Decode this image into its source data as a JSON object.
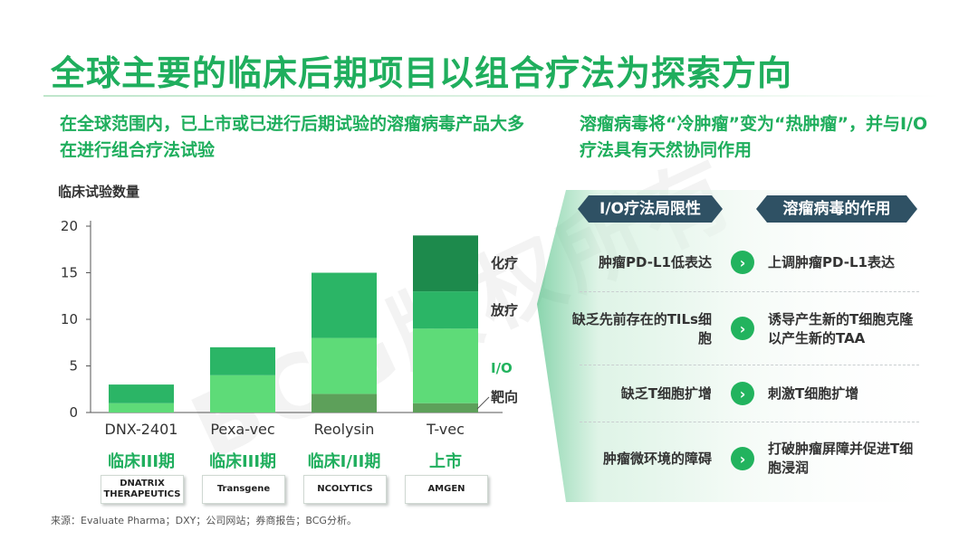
{
  "title": "全球主要的临床后期项目以组合疗法为探索方向",
  "left_subtitle": "在全球范围内，已上市或已进行后期试验的溶瘤病毒产品大多在进行组合疗法试验",
  "right_subtitle": "溶瘤病毒将“冷肿瘤”变为“热肿瘤”，并与I/O疗法具有天然协同作用",
  "watermark": "BCG版权所有",
  "colors": {
    "title_green": "#1fae5d",
    "targeted": "#5da05a",
    "io": "#5edb78",
    "radiation": "#2bb566",
    "chemo": "#1d8a4c",
    "header_bg": "#2f5164"
  },
  "chart_data": {
    "type": "bar",
    "stacked": true,
    "ylabel": "临床试验数量",
    "ylim": [
      0,
      20
    ],
    "yticks": [
      0,
      5,
      10,
      15,
      20
    ],
    "grid": false,
    "categories": [
      "DNX-2401",
      "Pexa-vec",
      "Reolysin",
      "T-vec"
    ],
    "series": [
      {
        "name": "靶向",
        "color": "#5da05a",
        "values": [
          0,
          0,
          2,
          1
        ]
      },
      {
        "name": "I/O",
        "color": "#5edb78",
        "values": [
          1,
          4,
          6,
          8
        ]
      },
      {
        "name": "放疗",
        "color": "#2bb566",
        "values": [
          2,
          3,
          7,
          4
        ]
      },
      {
        "name": "化疗",
        "color": "#1d8a4c",
        "values": [
          0,
          0,
          0,
          6
        ]
      }
    ],
    "legend_order_top_to_bottom": [
      "化疗",
      "放疗",
      "I/O",
      "靶向"
    ],
    "phases": [
      "临床III期",
      "临床III期",
      "临床I/II期",
      "上市"
    ],
    "companies": [
      "DNATRIX THERAPEUTICS",
      "Transgene",
      "NCOLYTICS",
      "AMGEN"
    ]
  },
  "panel": {
    "header_left": "I/O疗法局限性",
    "header_right": "溶瘤病毒的作用",
    "arrow_icon": "chevron-right-icon",
    "rows": [
      {
        "limitation": "肿瘤PD-L1低表达",
        "role": "上调肿瘤PD-L1表达"
      },
      {
        "limitation": "缺乏先前存在的TILs细胞",
        "role": "诱导产生新的T细胞克隆以产生新的TAA"
      },
      {
        "limitation": "缺乏T细胞扩增",
        "role": "刺激T细胞扩增"
      },
      {
        "limitation": "肿瘤微环境的障碍",
        "role": "打破肿瘤屏障并促进T细胞浸润"
      }
    ]
  },
  "source": "来源：Evaluate Pharma；DXY；公司网站；券商报告；BCG分析。"
}
